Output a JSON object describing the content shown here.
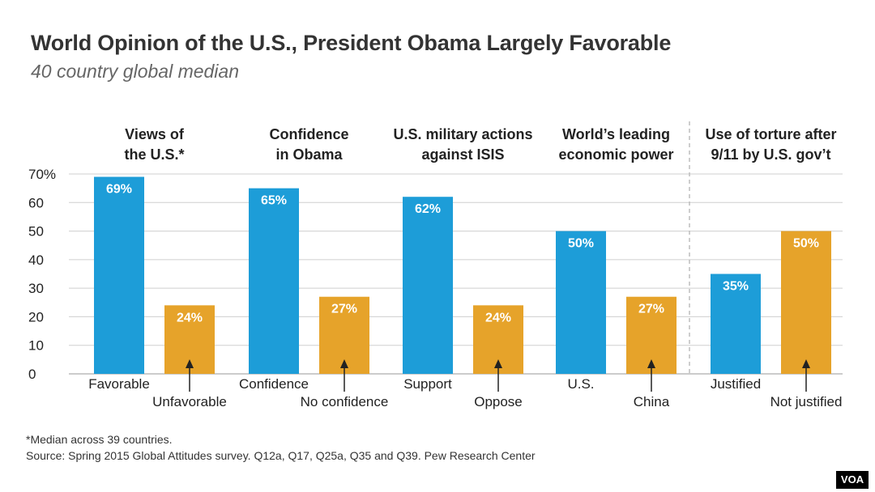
{
  "header": {
    "title": "World Opinion of the U.S., President Obama Largely Favorable",
    "subtitle": "40 country global median"
  },
  "colors": {
    "positive": "#1d9dd8",
    "negative": "#e6a32a",
    "grid": "#cfcfcf"
  },
  "chart_data": {
    "type": "bar",
    "ylim": [
      0,
      70
    ],
    "yticks": [
      "0",
      "10",
      "20",
      "30",
      "40",
      "50",
      "60",
      "70%"
    ],
    "groups": [
      {
        "title": [
          "Views of",
          "the U.S.*"
        ],
        "bars": [
          {
            "label": "Favorable",
            "value": 69,
            "text": "69%",
            "kind": "positive"
          },
          {
            "label": "Unfavorable",
            "value": 24,
            "text": "24%",
            "kind": "negative"
          }
        ]
      },
      {
        "title": [
          "Confidence",
          "in Obama"
        ],
        "bars": [
          {
            "label": "Confidence",
            "value": 65,
            "text": "65%",
            "kind": "positive"
          },
          {
            "label": "No confidence",
            "value": 27,
            "text": "27%",
            "kind": "negative"
          }
        ]
      },
      {
        "title": [
          "U.S. military actions",
          "against ISIS"
        ],
        "bars": [
          {
            "label": "Support",
            "value": 62,
            "text": "62%",
            "kind": "positive"
          },
          {
            "label": "Oppose",
            "value": 24,
            "text": "24%",
            "kind": "negative"
          }
        ]
      },
      {
        "title": [
          "World’s leading",
          "economic power"
        ],
        "bars": [
          {
            "label": "U.S.",
            "value": 50,
            "text": "50%",
            "kind": "positive"
          },
          {
            "label": "China",
            "value": 27,
            "text": "27%",
            "kind": "negative"
          }
        ]
      },
      {
        "title": [
          "Use of torture after",
          "9/11 by U.S. gov’t"
        ],
        "bars": [
          {
            "label": "Justified",
            "value": 35,
            "text": "35%",
            "kind": "positive"
          },
          {
            "label": "Not justified",
            "value": 50,
            "text": "50%",
            "kind": "negative"
          }
        ]
      }
    ]
  },
  "footer": {
    "note": "*Median across 39 countries.",
    "source": "Source: Spring 2015 Global Attitudes survey. Q12a, Q17, Q25a, Q35 and Q39. Pew Research Center",
    "logo": "VOA"
  }
}
